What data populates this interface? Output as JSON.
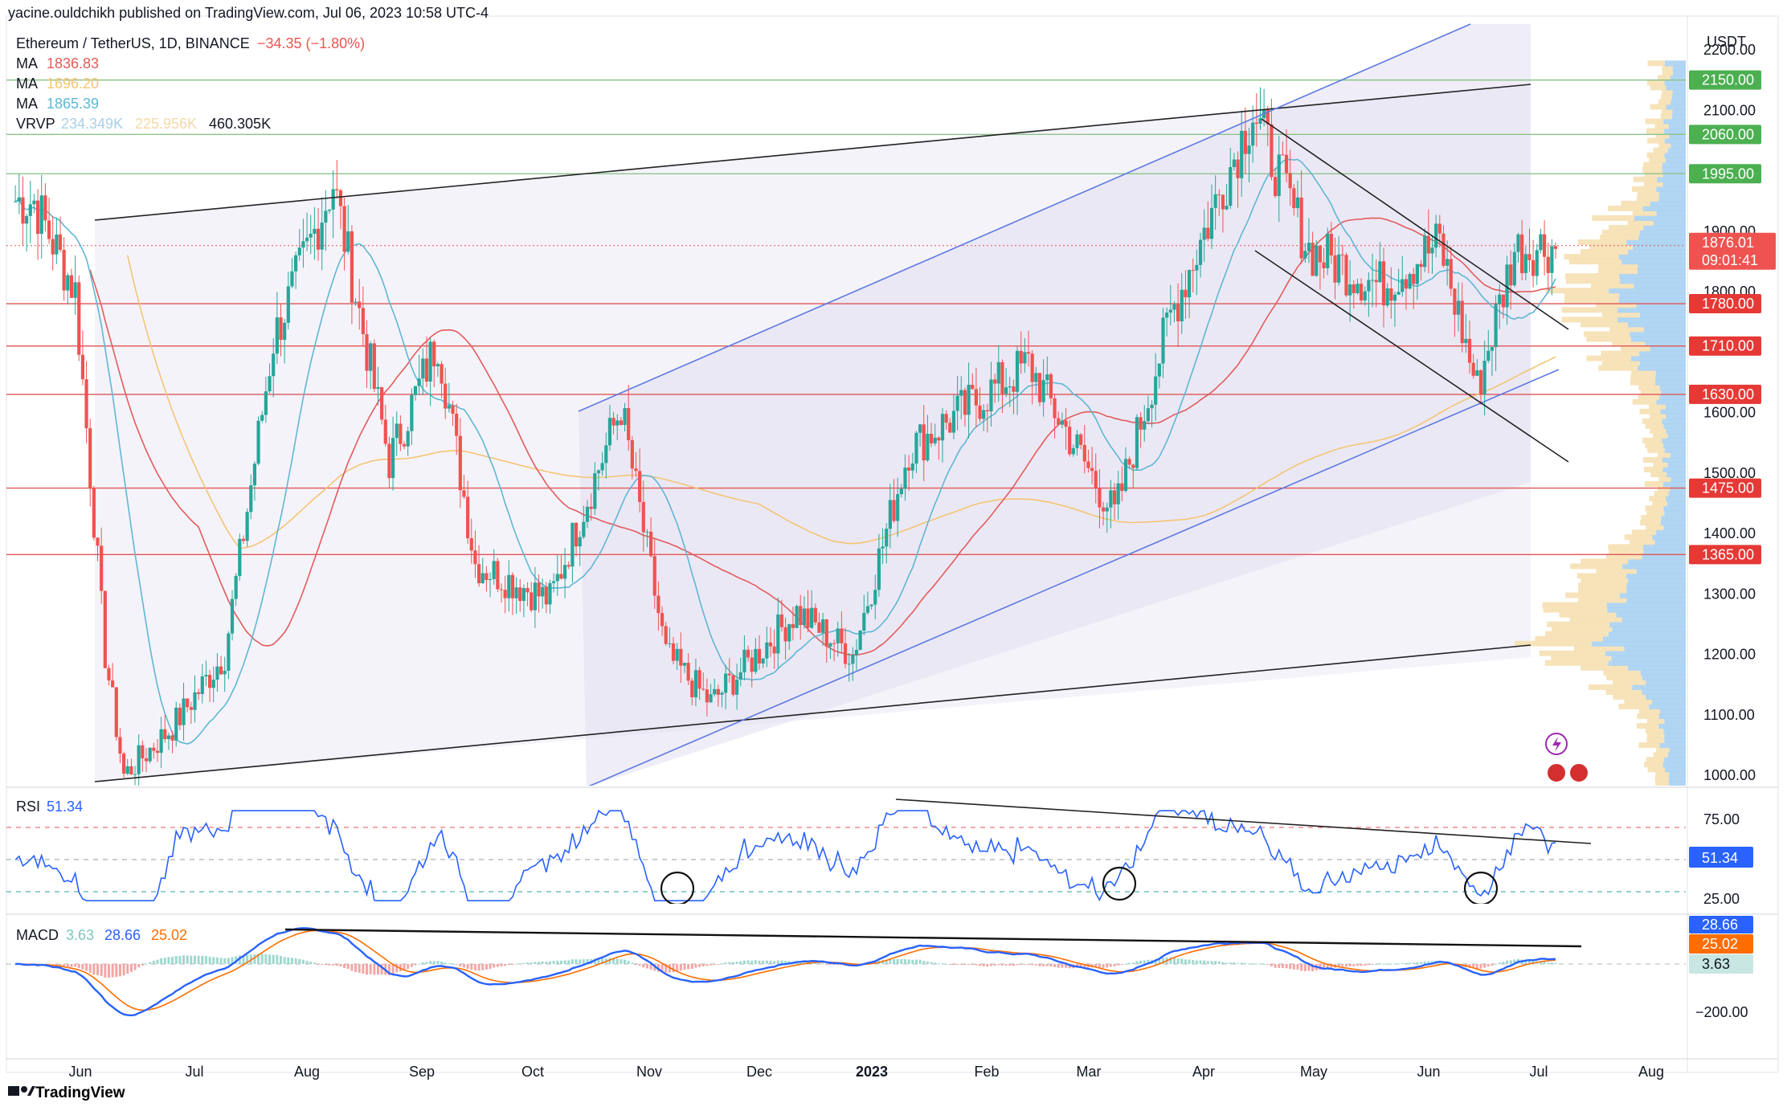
{
  "header": {
    "publisher": "yacine.ouldchikh published on TradingView.com, Jul 06, 2023 10:58 UTC-4"
  },
  "footer": {
    "brand": "TradingView",
    "logo": "tradingview-logo"
  },
  "legend": {
    "symbol": "Ethereum / TetherUS, 1D, BINANCE",
    "change": "−34.35 (−1.80%)",
    "ma": [
      {
        "label": "MA",
        "value": "1836.83",
        "color": "#e25c5c"
      },
      {
        "label": "MA",
        "value": "1696.20",
        "color": "#f3c574"
      },
      {
        "label": "MA",
        "value": "1865.39",
        "color": "#5fb7d4"
      }
    ],
    "vrvp": {
      "label": "VRVP",
      "v1": "234.349K",
      "v2": "225.956K",
      "v3": "460.305K"
    }
  },
  "price_axis": {
    "currency": "USDT",
    "ticks": [
      "2200.00",
      "2100.00",
      "1900.00",
      "1800.00",
      "1600.00",
      "1500.00",
      "1400.00",
      "1300.00",
      "1200.00",
      "1100.00",
      "1000.00"
    ],
    "levels_green": [
      {
        "price": 2150,
        "label": "2150.00"
      },
      {
        "price": 2060,
        "label": "2060.00"
      },
      {
        "price": 1995,
        "label": "1995.00"
      }
    ],
    "levels_red": [
      {
        "price": 1780,
        "label": "1780.00"
      },
      {
        "price": 1710,
        "label": "1710.00"
      },
      {
        "price": 1630,
        "label": "1630.00"
      },
      {
        "price": 1475,
        "label": "1475.00"
      },
      {
        "price": 1365,
        "label": "1365.00"
      }
    ],
    "last_price": {
      "label": "1876.01",
      "countdown": "09:01:41"
    }
  },
  "time_axis": {
    "labels": [
      "Jun",
      "Jul",
      "Aug",
      "Sep",
      "Oct",
      "Nov",
      "Dec",
      "2023",
      "Feb",
      "Mar",
      "Apr",
      "May",
      "Jun",
      "Jul",
      "Aug"
    ]
  },
  "rsi": {
    "label": "RSI",
    "value": "51.34",
    "ticks": [
      "75.00",
      "25.00"
    ]
  },
  "macd": {
    "label": "MACD",
    "hist": "3.63",
    "macd": "28.66",
    "signal": "25.02",
    "ticks": [
      "−200.00"
    ],
    "tags": [
      "28.66",
      "25.02",
      "3.63"
    ],
    "colors": {
      "macd": "#2962ff",
      "signal": "#ff6d00"
    }
  },
  "colors": {
    "up": "#26a69a",
    "down": "#ef5350",
    "channel": "#5b7be0",
    "level_green": "#8bc48a",
    "level_red": "#e05555"
  },
  "chart_data": {
    "type": "candlestick",
    "title": "Ethereum / TetherUS, 1D, BINANCE",
    "ylim": [
      970,
      2250
    ],
    "x_range": [
      "2022-05-20",
      "2023-08-20"
    ],
    "approx_closes": [
      {
        "date": "2022-05-25",
        "close": 1950
      },
      {
        "date": "2022-06-05",
        "close": 1800
      },
      {
        "date": "2022-06-13",
        "close": 1200
      },
      {
        "date": "2022-06-18",
        "close": 1000
      },
      {
        "date": "2022-07-01",
        "close": 1080
      },
      {
        "date": "2022-07-15",
        "close": 1200
      },
      {
        "date": "2022-07-28",
        "close": 1720
      },
      {
        "date": "2022-08-13",
        "close": 1980
      },
      {
        "date": "2022-08-28",
        "close": 1520
      },
      {
        "date": "2022-09-10",
        "close": 1720
      },
      {
        "date": "2022-09-20",
        "close": 1350
      },
      {
        "date": "2022-10-10",
        "close": 1290
      },
      {
        "date": "2022-10-29",
        "close": 1610
      },
      {
        "date": "2022-11-10",
        "close": 1200
      },
      {
        "date": "2022-11-22",
        "close": 1120
      },
      {
        "date": "2022-12-15",
        "close": 1270
      },
      {
        "date": "2022-12-30",
        "close": 1200
      },
      {
        "date": "2023-01-14",
        "close": 1540
      },
      {
        "date": "2023-02-15",
        "close": 1680
      },
      {
        "date": "2023-03-10",
        "close": 1430
      },
      {
        "date": "2023-03-25",
        "close": 1760
      },
      {
        "date": "2023-04-16",
        "close": 2100
      },
      {
        "date": "2023-05-01",
        "close": 1870
      },
      {
        "date": "2023-05-20",
        "close": 1810
      },
      {
        "date": "2023-06-05",
        "close": 1880
      },
      {
        "date": "2023-06-15",
        "close": 1640
      },
      {
        "date": "2023-06-25",
        "close": 1870
      },
      {
        "date": "2023-07-06",
        "close": 1876
      }
    ]
  }
}
